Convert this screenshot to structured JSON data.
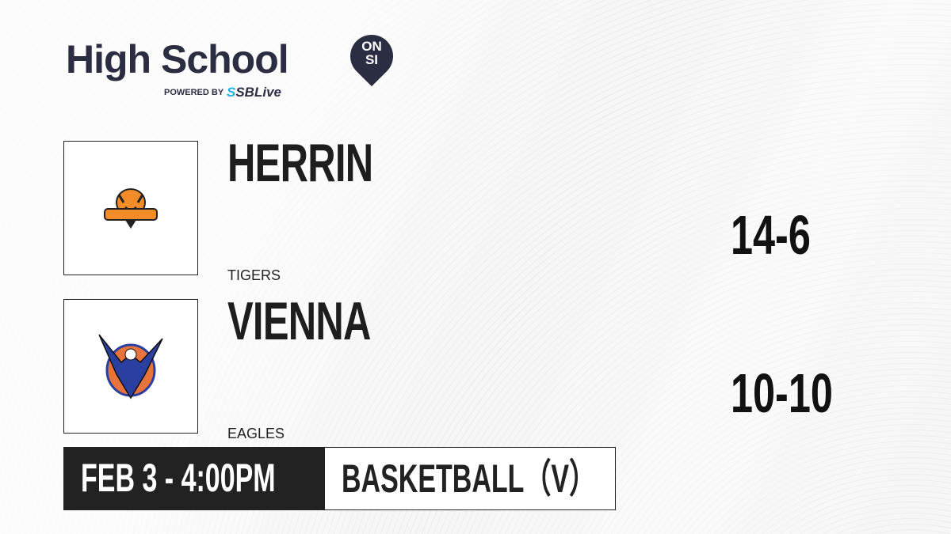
{
  "brand": {
    "title": "High School",
    "badge_line1": "ON",
    "badge_line2": "SI",
    "powered_by": "POWERED BY",
    "partner_prefix": "S",
    "partner": "SBLive"
  },
  "teams": [
    {
      "name": "HERRIN",
      "mascot": "TIGERS",
      "record": "14-6",
      "logo_icon": "tiger-logo-icon",
      "colors": [
        "#f28c28",
        "#222222"
      ]
    },
    {
      "name": "VIENNA",
      "mascot": "EAGLES",
      "record": "10-10",
      "logo_icon": "eagle-logo-icon",
      "colors": [
        "#e8743b",
        "#2b3fa0"
      ]
    }
  ],
  "game": {
    "datetime": "FEB 3 - 4:00PM",
    "sport": "BASKETBALL（V）"
  }
}
